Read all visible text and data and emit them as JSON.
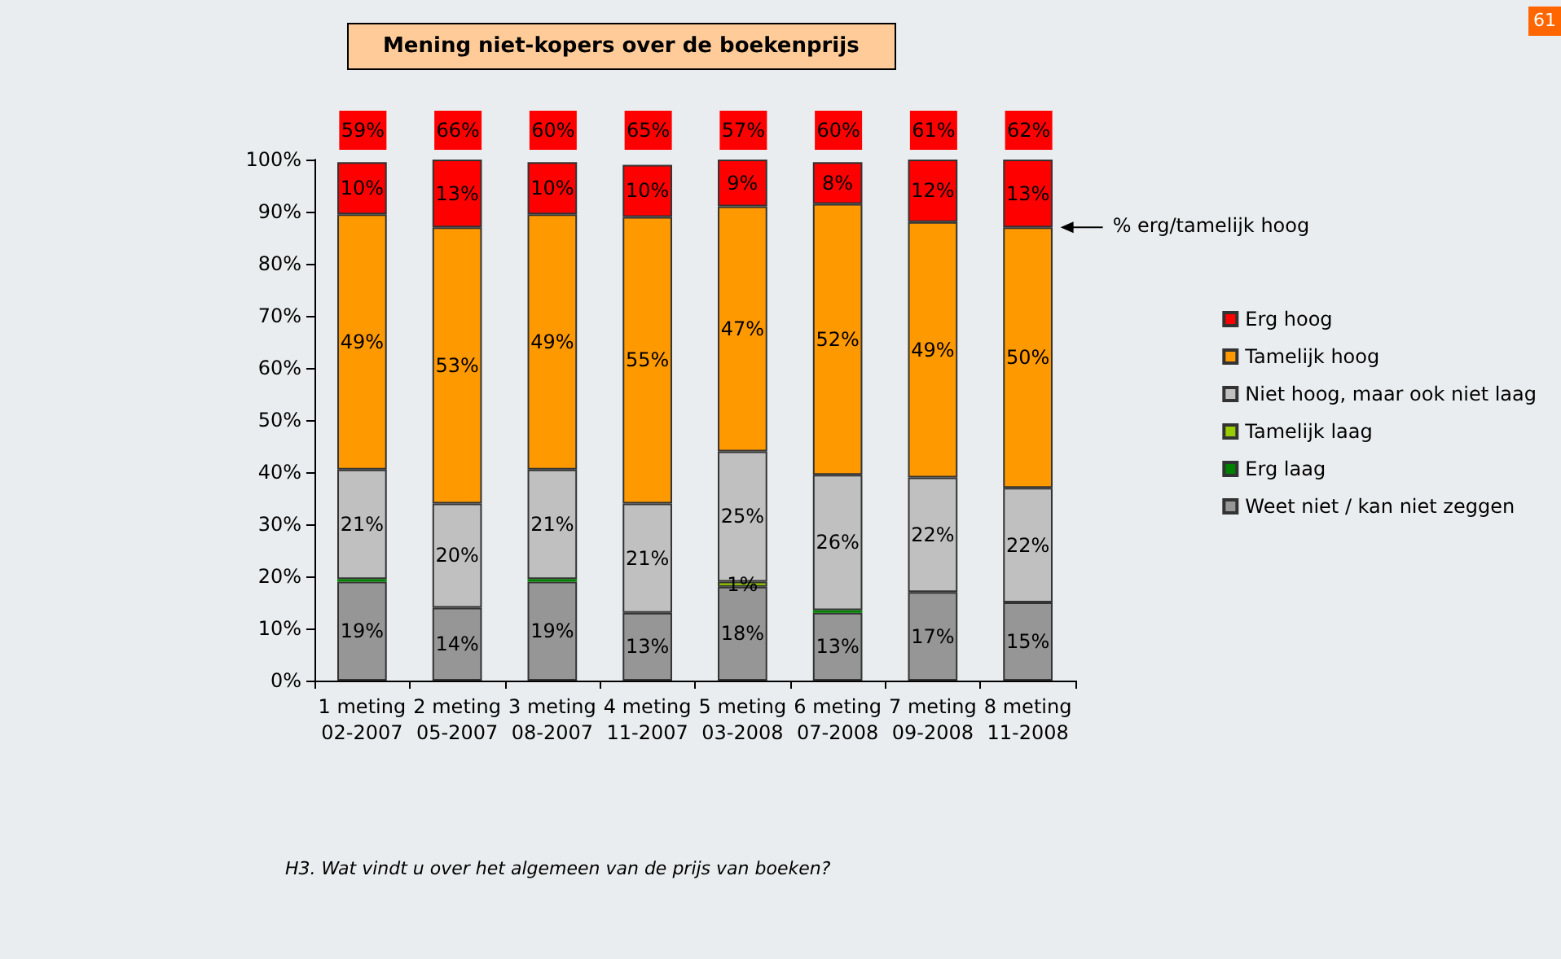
{
  "chart_data": {
    "type": "bar",
    "stacked": true,
    "title": "Mening niet-kopers over de boekenprijs",
    "categories": [
      "1 meting\n02-2007",
      "2 meting\n05-2007",
      "3 meting\n08-2007",
      "4 meting\n11-2007",
      "5 meting\n03-2008",
      "6 meting\n07-2008",
      "7 meting\n09-2008",
      "8 meting\n11-2008"
    ],
    "series": [
      {
        "name": "Weet niet / kan niet zeggen",
        "color": "#969696",
        "values": [
          19,
          14,
          19,
          13,
          18,
          13,
          17,
          15
        ],
        "value_labels": [
          "19%",
          "14%",
          "19%",
          "13%",
          "18%",
          "13%",
          "17%",
          "15%"
        ]
      },
      {
        "name": "Erg laag",
        "color": "#008000",
        "values": [
          0.5,
          0,
          0.5,
          0,
          0,
          0.5,
          0,
          0
        ],
        "value_labels": [
          null,
          null,
          null,
          null,
          null,
          null,
          null,
          null
        ]
      },
      {
        "name": "Tamelijk laag",
        "color": "#99cc00",
        "values": [
          0,
          0,
          0,
          0,
          1,
          0,
          0,
          0
        ],
        "value_labels": [
          null,
          null,
          null,
          null,
          "1%",
          null,
          null,
          null
        ]
      },
      {
        "name": "Niet hoog, maar ook niet laag",
        "color": "#c0c0c0",
        "values": [
          21,
          20,
          21,
          21,
          25,
          26,
          22,
          22
        ],
        "value_labels": [
          "21%",
          "20%",
          "21%",
          "21%",
          "25%",
          "26%",
          "22%",
          "22%"
        ]
      },
      {
        "name": "Tamelijk hoog",
        "color": "#ff9900",
        "values": [
          49,
          53,
          49,
          55,
          47,
          52,
          49,
          50
        ],
        "value_labels": [
          "49%",
          "53%",
          "49%",
          "55%",
          "47%",
          "52%",
          "49%",
          "50%"
        ]
      },
      {
        "name": "Erg hoog",
        "color": "#ff0000",
        "values": [
          10,
          13,
          10,
          10,
          9,
          8,
          12,
          13
        ],
        "value_labels": [
          "10%",
          "13%",
          "10%",
          "10%",
          "9%",
          "8%",
          "12%",
          "13%"
        ]
      }
    ],
    "ylim": [
      0,
      100
    ],
    "yticks": [
      {
        "value": 0,
        "label": "0%"
      },
      {
        "value": 10,
        "label": "10%"
      },
      {
        "value": 20,
        "label": "20%"
      },
      {
        "value": 30,
        "label": "30%"
      },
      {
        "value": 40,
        "label": "40%"
      },
      {
        "value": 50,
        "label": "50%"
      },
      {
        "value": 60,
        "label": "60%"
      },
      {
        "value": 70,
        "label": "70%"
      },
      {
        "value": 80,
        "label": "80%"
      },
      {
        "value": 90,
        "label": "90%"
      },
      {
        "value": 100,
        "label": "100%"
      }
    ],
    "grid": false,
    "legend": "right",
    "annotations": [
      "59%",
      "66%",
      "60%",
      "65%",
      "57%",
      "60%",
      "61%",
      "62%",
      "% erg/tamelijk hoog",
      "H3. Wat vindt u over het algemeen van de prijs van boeken?",
      "61"
    ]
  }
}
